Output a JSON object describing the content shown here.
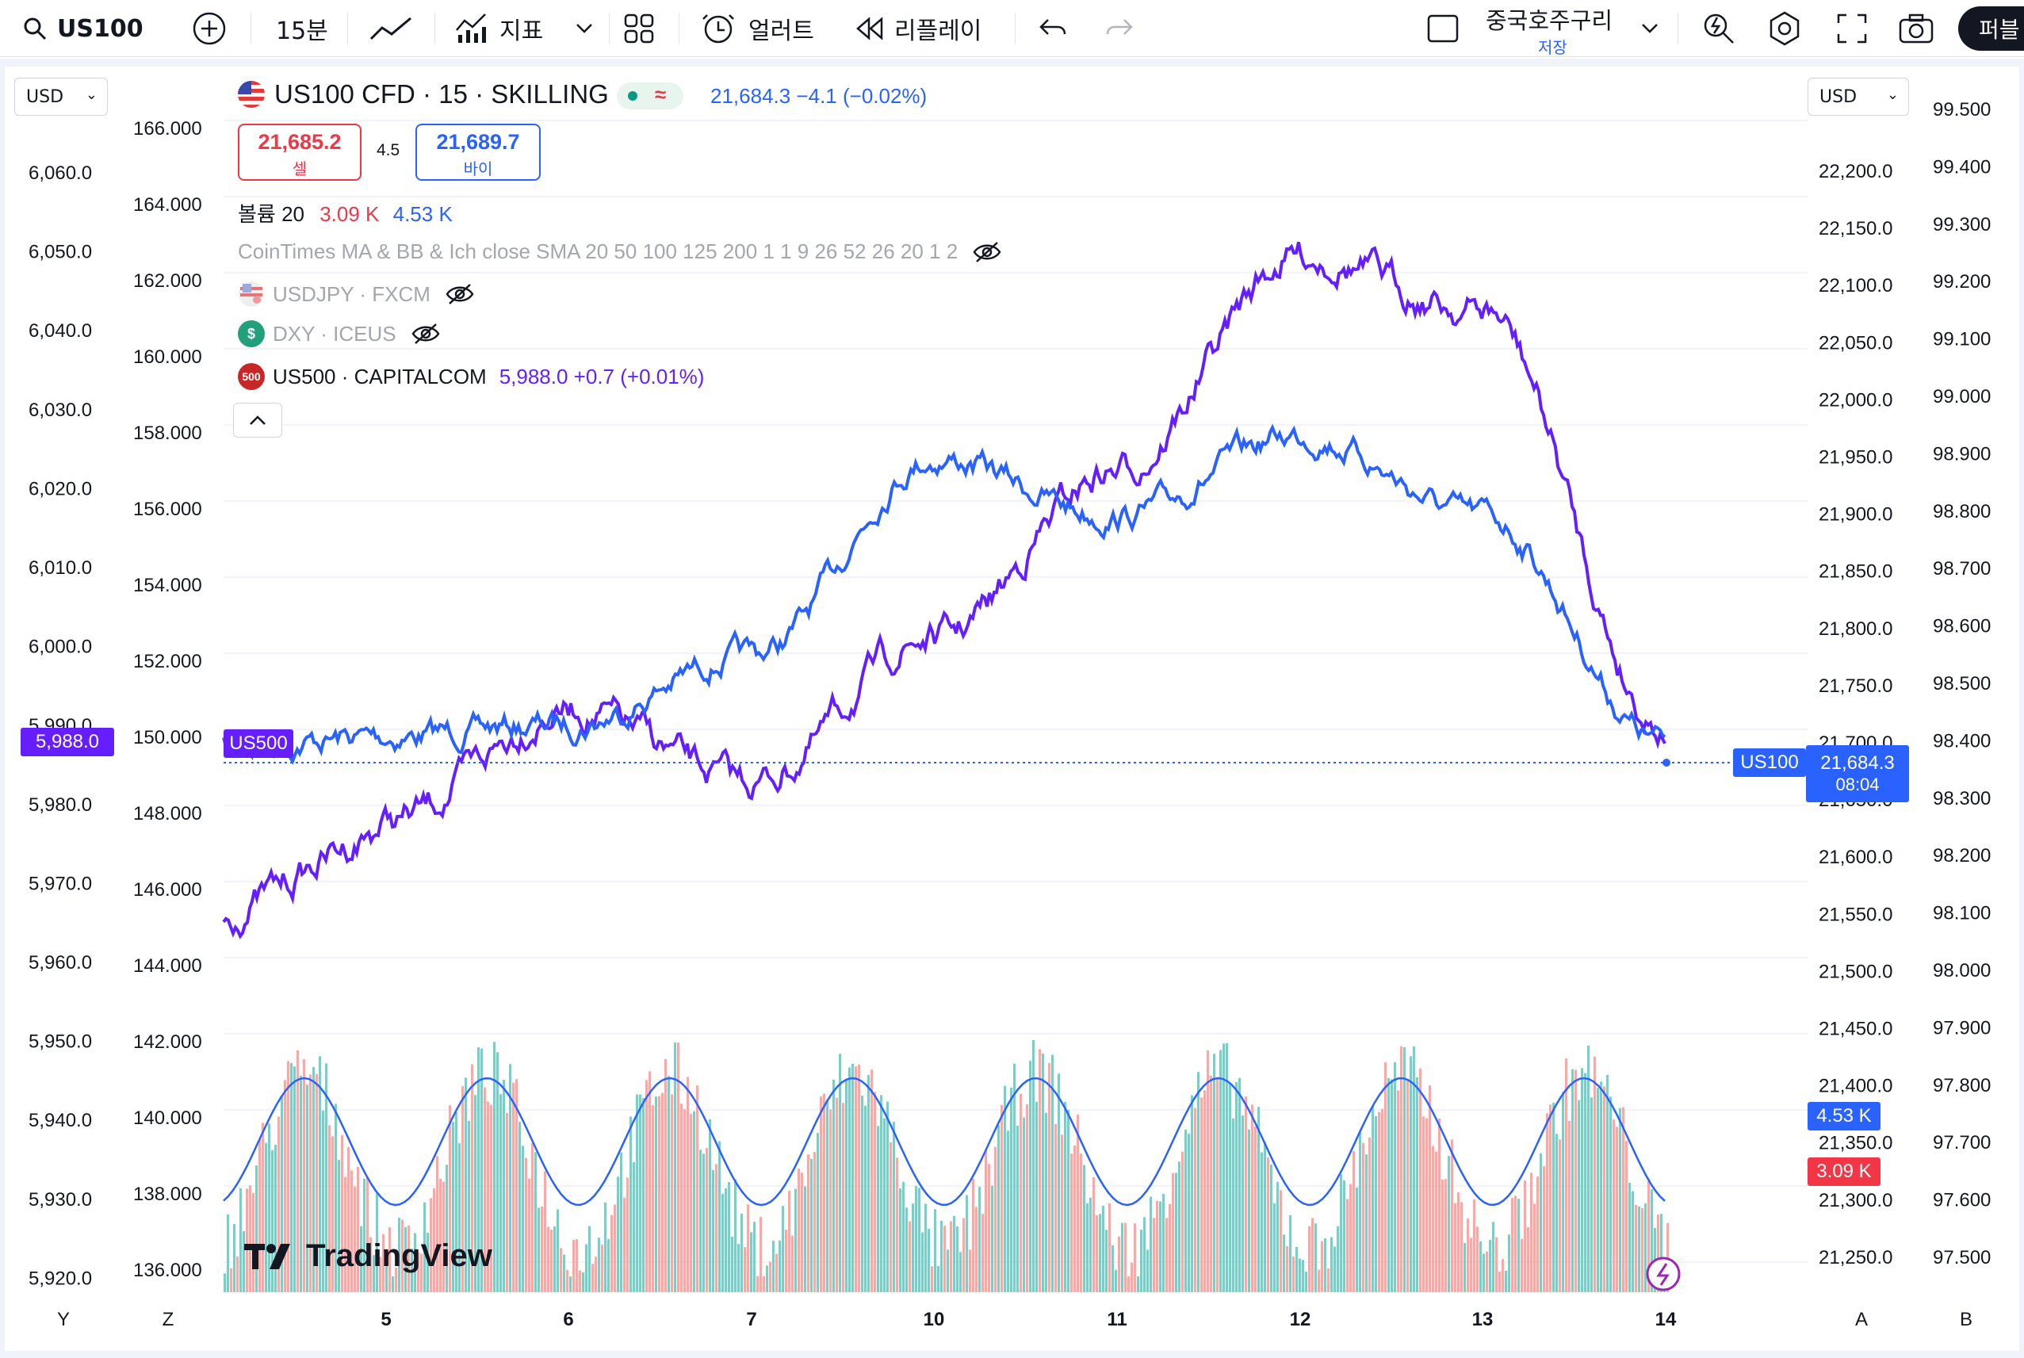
{
  "toolbar": {
    "symbol": "US100",
    "interval": "15분",
    "indicators": "지표",
    "alert": "얼러트",
    "replay": "리플레이",
    "layout_name": "중국호주구리",
    "layout_status": "저장",
    "publish": "퍼블"
  },
  "legend": {
    "title": "US100 CFD · 15 · SKILLING",
    "status_icon": "≈",
    "quote": "21,684.3  −4.1 (−0.02%)",
    "sell_price": "21,685.2",
    "sell_label": "셀",
    "spread": "4.5",
    "buy_price": "21,689.7",
    "buy_label": "바이",
    "volume_label": "볼륨 20",
    "volume_sell": "3.09 K",
    "volume_buy": "4.53 K",
    "indicator_text": "CoinTimes MA & BB & Ich close SMA 20 50 100 125 200 1 1 9 26 52 26 20 1 2",
    "overlay_1": "USDJPY · FXCM",
    "overlay_2": "DXY · ICEUS",
    "overlay_2_badge": "$",
    "overlay_3": "US500 · CAPITALCOM",
    "overlay_3_badge": "500",
    "overlay_3_quote": "5,988.0  +0.7 (+0.01%)"
  },
  "scales": {
    "left_unit": "USD",
    "right_unit": "USD",
    "left_us500_ticks": [
      "6,060.0",
      "6,050.0",
      "6,040.0",
      "6,030.0",
      "6,020.0",
      "6,010.0",
      "6,000.0",
      "5,990.0",
      "5,980.0",
      "5,970.0",
      "5,960.0",
      "5,950.0",
      "5,940.0",
      "5,930.0",
      "5,920.0"
    ],
    "left_usdjpy_ticks": [
      "166.000",
      "164.000",
      "162.000",
      "160.000",
      "158.000",
      "156.000",
      "154.000",
      "152.000",
      "150.000",
      "148.000",
      "146.000",
      "144.000",
      "142.000",
      "140.000",
      "138.000",
      "136.000"
    ],
    "right_us100_ticks": [
      "22,200.0",
      "22,150.0",
      "22,100.0",
      "22,050.0",
      "22,000.0",
      "21,950.0",
      "21,900.0",
      "21,850.0",
      "21,800.0",
      "21,750.0",
      "21,700.0",
      "21,650.0",
      "21,600.0",
      "21,550.0",
      "21,500.0",
      "21,450.0",
      "21,400.0",
      "21,350.0",
      "21,300.0",
      "21,250.0"
    ],
    "right_dxy_ticks": [
      "99.500",
      "99.400",
      "99.300",
      "99.200",
      "99.100",
      "99.000",
      "98.900",
      "98.800",
      "98.700",
      "98.600",
      "98.500",
      "98.400",
      "98.300",
      "98.200",
      "98.100",
      "98.000",
      "97.900",
      "97.800",
      "97.700",
      "97.600",
      "97.500"
    ],
    "time_labels": [
      "5",
      "6",
      "7",
      "10",
      "11",
      "12",
      "13",
      "14"
    ],
    "left_axis_letters": [
      "Y",
      "Z"
    ],
    "right_axis_letters": [
      "A",
      "B"
    ]
  },
  "tags": {
    "us500_price": "5,988.0",
    "us500_name": "US500",
    "us100_name": "US100",
    "us100_price": "21,684.3",
    "us100_countdown": "08:04",
    "vol_buy": "4.53 K",
    "vol_sell": "3.09 K"
  },
  "brand": "TradingView",
  "colors": {
    "us100": "#2962ff",
    "us500": "#651fff",
    "vol_up": "#80cbc4",
    "vol_down": "#f7a9a7",
    "sell": "#f23645",
    "buy": "#2962ff"
  },
  "chart_data": {
    "type": "line",
    "x": [
      "5",
      "6",
      "7",
      "10",
      "11",
      "12",
      "13",
      "14"
    ],
    "series": [
      {
        "name": "US100 CFD",
        "axis": "right",
        "values": [
          21690,
          21700,
          21760,
          21930,
          21880,
          21950,
          21880,
          21684.3
        ]
      },
      {
        "name": "US500",
        "axis": "left-outer",
        "values": [
          5976,
          5990,
          5981,
          5999,
          6020,
          6047,
          6040,
          5988.0
        ]
      },
      {
        "name": "Volume SMA 20",
        "axis": "volume",
        "values": [
          3.2,
          1.8,
          3.9,
          2.6,
          3.0,
          3.2,
          3.0,
          4.53
        ]
      }
    ],
    "ylim_right": [
      21230,
      22230
    ],
    "ylim_left": [
      5918,
      6065
    ]
  }
}
